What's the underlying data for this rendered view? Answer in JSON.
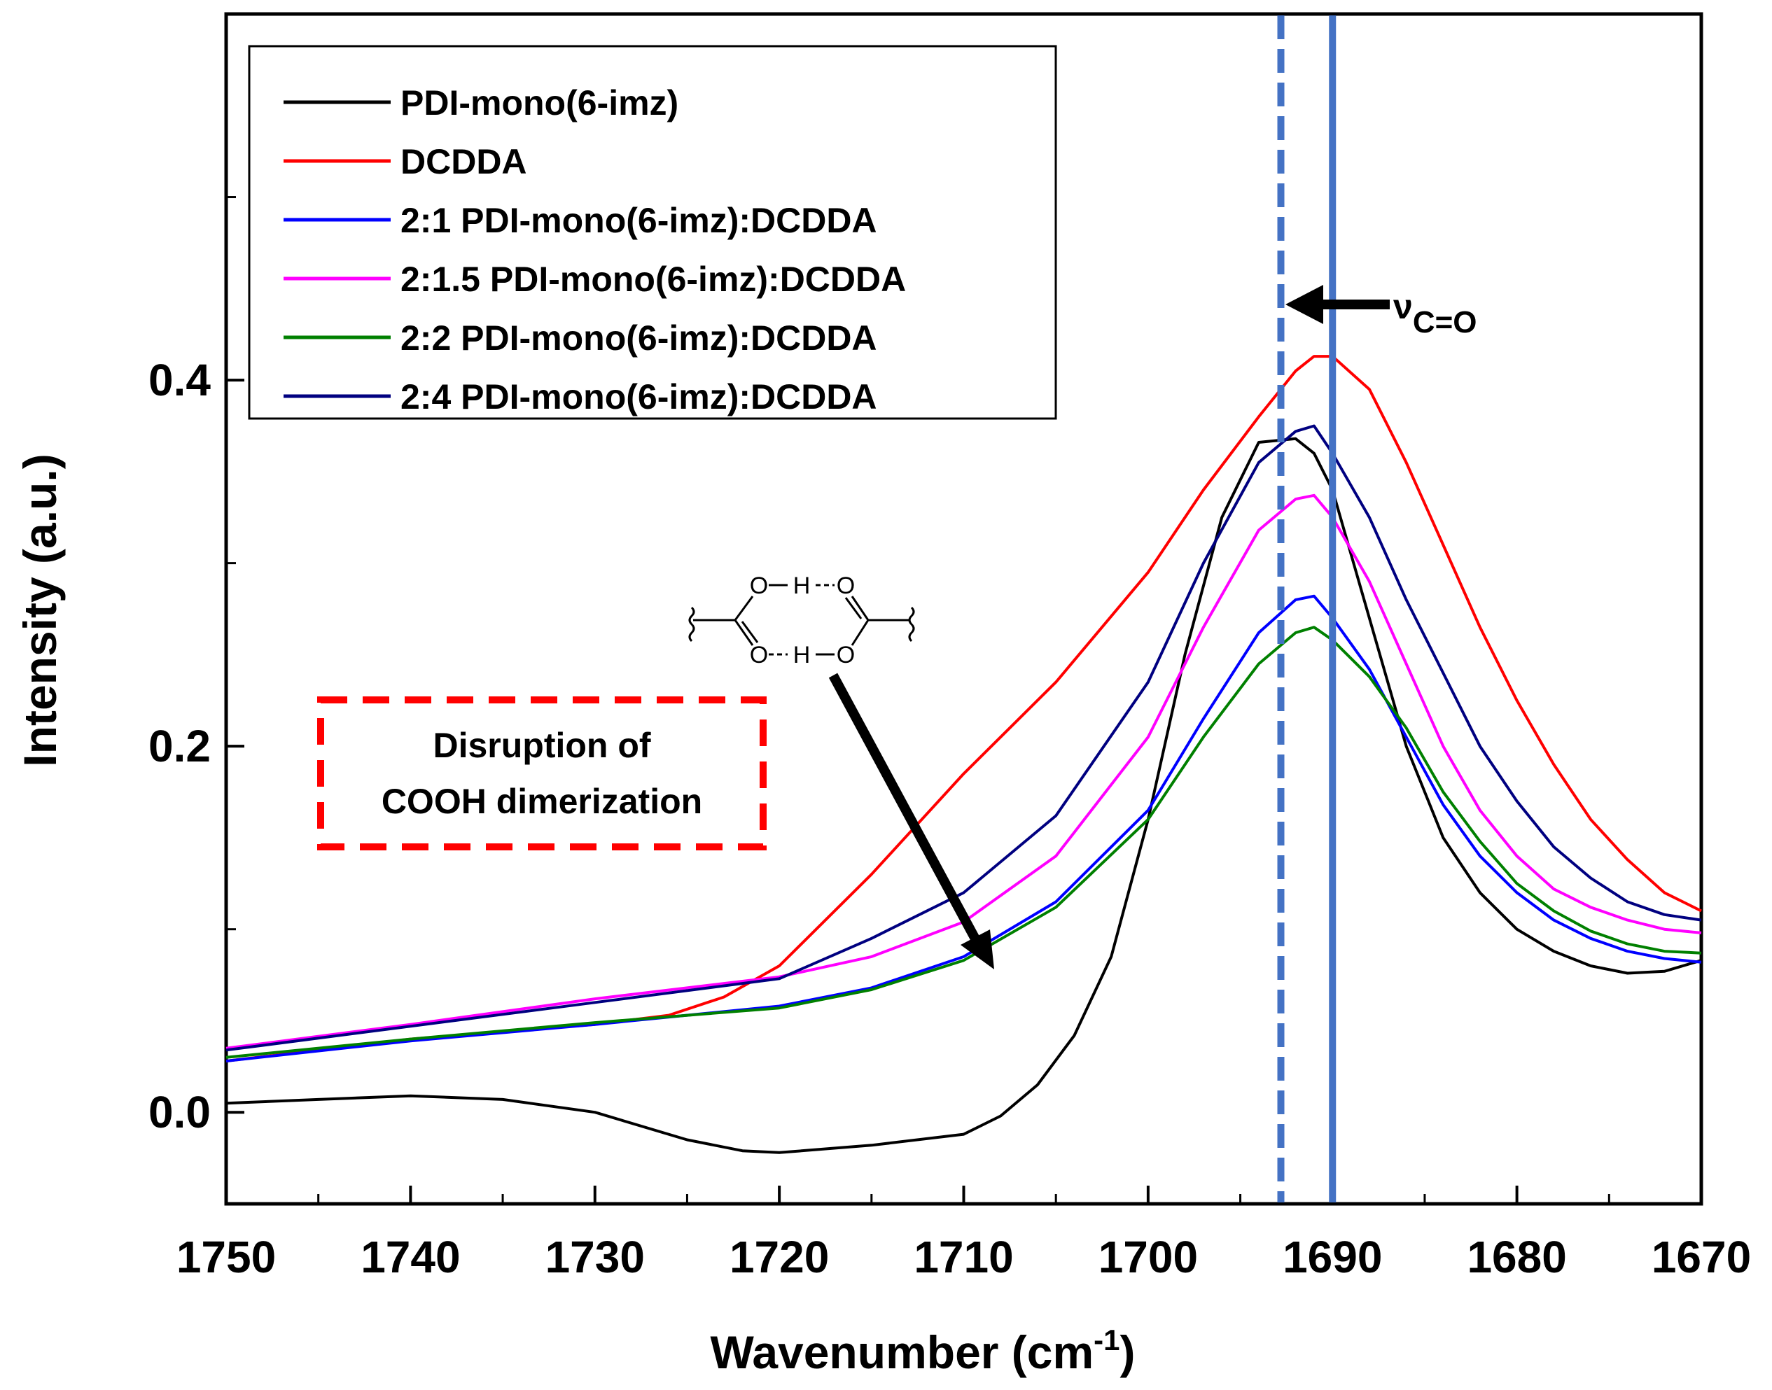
{
  "chart_data": {
    "type": "line",
    "title": "",
    "xlabel": "Wavenumber (cm",
    "xlabel_sup": "-1",
    "xlabel_close": ")",
    "ylabel": "Intensity (a.u.)",
    "xlim": [
      1750,
      1670
    ],
    "ylim": [
      -0.05,
      0.6
    ],
    "x_ticks": [
      1750,
      1740,
      1730,
      1720,
      1710,
      1700,
      1690,
      1680,
      1670
    ],
    "y_ticks": [
      0.0,
      0.2,
      0.4
    ],
    "y_tick_labels": [
      "0.0",
      "0.2",
      "0.4"
    ],
    "legend_position": "top-left",
    "series": [
      {
        "name": "PDI-mono(6-imz)",
        "color": "#000000",
        "x": [
          1750,
          1745,
          1740,
          1735,
          1730,
          1725,
          1722,
          1720,
          1715,
          1710,
          1708,
          1706,
          1704,
          1702,
          1700,
          1698,
          1696,
          1694,
          1692,
          1691,
          1690,
          1688,
          1686,
          1684,
          1682,
          1680,
          1678,
          1676,
          1674,
          1672,
          1670
        ],
        "y": [
          0.005,
          0.007,
          0.009,
          0.007,
          0.0,
          -0.015,
          -0.021,
          -0.022,
          -0.018,
          -0.012,
          -0.002,
          0.015,
          0.042,
          0.085,
          0.16,
          0.25,
          0.325,
          0.366,
          0.368,
          0.36,
          0.34,
          0.27,
          0.2,
          0.15,
          0.12,
          0.1,
          0.088,
          0.08,
          0.076,
          0.077,
          0.083
        ]
      },
      {
        "name": "DCDDA",
        "color": "#ff0000",
        "x": [
          1750,
          1740,
          1730,
          1726,
          1723,
          1720,
          1715,
          1710,
          1705,
          1700,
          1697,
          1694,
          1692,
          1691,
          1690,
          1688,
          1686,
          1684,
          1682,
          1680,
          1678,
          1676,
          1674,
          1672,
          1670
        ],
        "y": [
          0.028,
          0.04,
          0.048,
          0.053,
          0.063,
          0.08,
          0.13,
          0.185,
          0.235,
          0.295,
          0.34,
          0.38,
          0.405,
          0.413,
          0.413,
          0.395,
          0.355,
          0.31,
          0.265,
          0.225,
          0.19,
          0.16,
          0.138,
          0.12,
          0.11
        ]
      },
      {
        "name": "2:1 PDI-mono(6-imz):DCDDA",
        "color": "#0000ff",
        "x": [
          1750,
          1740,
          1730,
          1720,
          1715,
          1710,
          1705,
          1700,
          1697,
          1694,
          1692,
          1691,
          1690,
          1688,
          1686,
          1684,
          1682,
          1680,
          1678,
          1676,
          1674,
          1672,
          1670
        ],
        "y": [
          0.028,
          0.039,
          0.048,
          0.058,
          0.068,
          0.085,
          0.115,
          0.165,
          0.215,
          0.262,
          0.28,
          0.282,
          0.27,
          0.242,
          0.205,
          0.168,
          0.14,
          0.12,
          0.105,
          0.095,
          0.088,
          0.084,
          0.082
        ]
      },
      {
        "name": "2:1.5 PDI-mono(6-imz):DCDDA",
        "color": "#ff00ff",
        "x": [
          1750,
          1740,
          1730,
          1720,
          1715,
          1710,
          1705,
          1700,
          1697,
          1694,
          1692,
          1691,
          1690,
          1688,
          1686,
          1684,
          1682,
          1680,
          1678,
          1676,
          1674,
          1672,
          1670
        ],
        "y": [
          0.035,
          0.048,
          0.062,
          0.074,
          0.085,
          0.104,
          0.14,
          0.205,
          0.265,
          0.318,
          0.335,
          0.337,
          0.325,
          0.29,
          0.245,
          0.2,
          0.165,
          0.14,
          0.122,
          0.112,
          0.105,
          0.1,
          0.098
        ]
      },
      {
        "name": "2:2 PDI-mono(6-imz):DCDDA",
        "color": "#008000",
        "x": [
          1750,
          1740,
          1730,
          1720,
          1715,
          1710,
          1705,
          1700,
          1697,
          1694,
          1692,
          1691,
          1690,
          1688,
          1686,
          1684,
          1682,
          1680,
          1678,
          1676,
          1674,
          1672,
          1670
        ],
        "y": [
          0.03,
          0.04,
          0.049,
          0.057,
          0.067,
          0.083,
          0.112,
          0.16,
          0.205,
          0.245,
          0.262,
          0.265,
          0.258,
          0.238,
          0.21,
          0.175,
          0.148,
          0.125,
          0.11,
          0.099,
          0.092,
          0.088,
          0.087
        ]
      },
      {
        "name": "2:4 PDI-mono(6-imz):DCDDA",
        "color": "#000080",
        "x": [
          1750,
          1740,
          1730,
          1720,
          1715,
          1710,
          1705,
          1700,
          1697,
          1694,
          1692,
          1691,
          1690,
          1688,
          1686,
          1684,
          1682,
          1680,
          1678,
          1676,
          1674,
          1672,
          1670
        ],
        "y": [
          0.034,
          0.047,
          0.06,
          0.073,
          0.095,
          0.12,
          0.162,
          0.235,
          0.3,
          0.355,
          0.372,
          0.375,
          0.36,
          0.325,
          0.28,
          0.24,
          0.2,
          0.17,
          0.145,
          0.128,
          0.115,
          0.108,
          0.105
        ]
      }
    ],
    "vlines": [
      {
        "x": 1692.8,
        "style": "dashed",
        "color": "#4472c4"
      },
      {
        "x": 1690.0,
        "style": "solid",
        "color": "#4472c4"
      }
    ],
    "annotations": {
      "nu_symbol": "ν",
      "nu_subscript": "C=O",
      "box_line1": "Disruption of",
      "box_line2": "COOH dimerization",
      "box_color": "#ff0000",
      "chem_o_top_left": "O",
      "chem_h_top": "H",
      "chem_o_top_right": "O",
      "chem_o_bottom_left": "O",
      "chem_h_bottom": "H",
      "chem_o_bottom_right": "O"
    }
  }
}
